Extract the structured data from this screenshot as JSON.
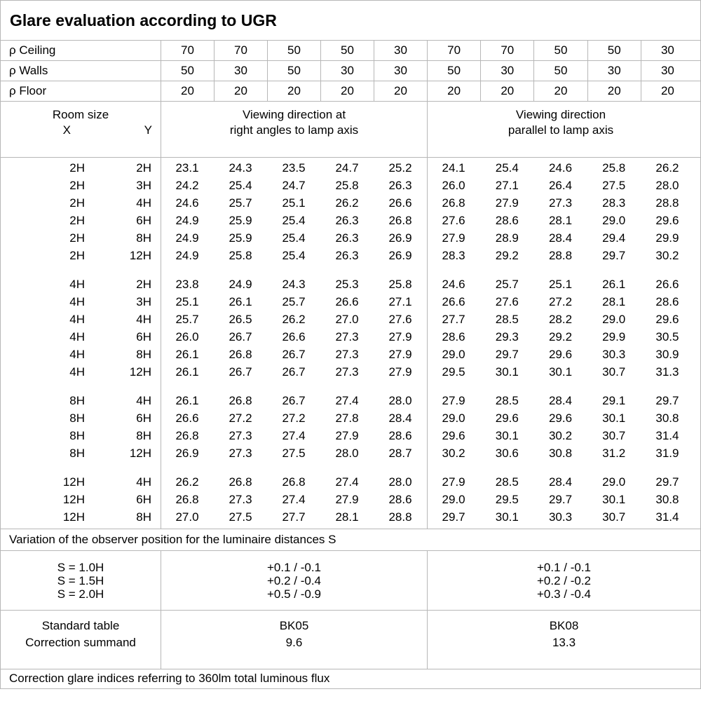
{
  "title": "Glare evaluation according to UGR",
  "reflectance_rows": [
    {
      "label": "ρ Ceiling",
      "v": [
        "70",
        "70",
        "50",
        "50",
        "30",
        "70",
        "70",
        "50",
        "50",
        "30"
      ]
    },
    {
      "label": "ρ Walls",
      "v": [
        "50",
        "30",
        "50",
        "30",
        "30",
        "50",
        "30",
        "50",
        "30",
        "30"
      ]
    },
    {
      "label": "ρ Floor",
      "v": [
        "20",
        "20",
        "20",
        "20",
        "20",
        "20",
        "20",
        "20",
        "20",
        "20"
      ]
    }
  ],
  "header": {
    "room_size": "Room size",
    "x_label": "X",
    "y_label": "Y",
    "left_line1": "Viewing direction at",
    "left_line2": "right angles to lamp axis",
    "right_line1": "Viewing direction",
    "right_line2": "parallel to lamp axis"
  },
  "ugr": {
    "group_2h": [
      {
        "x": "2H",
        "y": "2H",
        "v": [
          "23.1",
          "24.3",
          "23.5",
          "24.7",
          "25.2",
          "24.1",
          "25.4",
          "24.6",
          "25.8",
          "26.2"
        ]
      },
      {
        "x": "2H",
        "y": "3H",
        "v": [
          "24.2",
          "25.4",
          "24.7",
          "25.8",
          "26.3",
          "26.0",
          "27.1",
          "26.4",
          "27.5",
          "28.0"
        ]
      },
      {
        "x": "2H",
        "y": "4H",
        "v": [
          "24.6",
          "25.7",
          "25.1",
          "26.2",
          "26.6",
          "26.8",
          "27.9",
          "27.3",
          "28.3",
          "28.8"
        ]
      },
      {
        "x": "2H",
        "y": "6H",
        "v": [
          "24.9",
          "25.9",
          "25.4",
          "26.3",
          "26.8",
          "27.6",
          "28.6",
          "28.1",
          "29.0",
          "29.6"
        ]
      },
      {
        "x": "2H",
        "y": "8H",
        "v": [
          "24.9",
          "25.9",
          "25.4",
          "26.3",
          "26.9",
          "27.9",
          "28.9",
          "28.4",
          "29.4",
          "29.9"
        ]
      },
      {
        "x": "2H",
        "y": "12H",
        "v": [
          "24.9",
          "25.8",
          "25.4",
          "26.3",
          "26.9",
          "28.3",
          "29.2",
          "28.8",
          "29.7",
          "30.2"
        ]
      }
    ],
    "group_4h": [
      {
        "x": "4H",
        "y": "2H",
        "v": [
          "23.8",
          "24.9",
          "24.3",
          "25.3",
          "25.8",
          "24.6",
          "25.7",
          "25.1",
          "26.1",
          "26.6"
        ]
      },
      {
        "x": "4H",
        "y": "3H",
        "v": [
          "25.1",
          "26.1",
          "25.7",
          "26.6",
          "27.1",
          "26.6",
          "27.6",
          "27.2",
          "28.1",
          "28.6"
        ]
      },
      {
        "x": "4H",
        "y": "4H",
        "v": [
          "25.7",
          "26.5",
          "26.2",
          "27.0",
          "27.6",
          "27.7",
          "28.5",
          "28.2",
          "29.0",
          "29.6"
        ]
      },
      {
        "x": "4H",
        "y": "6H",
        "v": [
          "26.0",
          "26.7",
          "26.6",
          "27.3",
          "27.9",
          "28.6",
          "29.3",
          "29.2",
          "29.9",
          "30.5"
        ]
      },
      {
        "x": "4H",
        "y": "8H",
        "v": [
          "26.1",
          "26.8",
          "26.7",
          "27.3",
          "27.9",
          "29.0",
          "29.7",
          "29.6",
          "30.3",
          "30.9"
        ]
      },
      {
        "x": "4H",
        "y": "12H",
        "v": [
          "26.1",
          "26.7",
          "26.7",
          "27.3",
          "27.9",
          "29.5",
          "30.1",
          "30.1",
          "30.7",
          "31.3"
        ]
      }
    ],
    "group_8h": [
      {
        "x": "8H",
        "y": "4H",
        "v": [
          "26.1",
          "26.8",
          "26.7",
          "27.4",
          "28.0",
          "27.9",
          "28.5",
          "28.4",
          "29.1",
          "29.7"
        ]
      },
      {
        "x": "8H",
        "y": "6H",
        "v": [
          "26.6",
          "27.2",
          "27.2",
          "27.8",
          "28.4",
          "29.0",
          "29.6",
          "29.6",
          "30.1",
          "30.8"
        ]
      },
      {
        "x": "8H",
        "y": "8H",
        "v": [
          "26.8",
          "27.3",
          "27.4",
          "27.9",
          "28.6",
          "29.6",
          "30.1",
          "30.2",
          "30.7",
          "31.4"
        ]
      },
      {
        "x": "8H",
        "y": "12H",
        "v": [
          "26.9",
          "27.3",
          "27.5",
          "28.0",
          "28.7",
          "30.2",
          "30.6",
          "30.8",
          "31.2",
          "31.9"
        ]
      }
    ],
    "group_12h": [
      {
        "x": "12H",
        "y": "4H",
        "v": [
          "26.2",
          "26.8",
          "26.8",
          "27.4",
          "28.0",
          "27.9",
          "28.5",
          "28.4",
          "29.0",
          "29.7"
        ]
      },
      {
        "x": "12H",
        "y": "6H",
        "v": [
          "26.8",
          "27.3",
          "27.4",
          "27.9",
          "28.6",
          "29.0",
          "29.5",
          "29.7",
          "30.1",
          "30.8"
        ]
      },
      {
        "x": "12H",
        "y": "8H",
        "v": [
          "27.0",
          "27.5",
          "27.7",
          "28.1",
          "28.8",
          "29.7",
          "30.1",
          "30.3",
          "30.7",
          "31.4"
        ]
      }
    ]
  },
  "variation_note": "Variation of the observer position for the luminaire distances S",
  "observer_variation": {
    "rows": [
      {
        "label": "S = 1.0H",
        "right_angles": "+0.1 / -0.1",
        "parallel": "+0.1 / -0.1"
      },
      {
        "label": "S = 1.5H",
        "right_angles": "+0.2 / -0.4",
        "parallel": "+0.2 / -0.2"
      },
      {
        "label": "S = 2.0H",
        "right_angles": "+0.5 / -0.9",
        "parallel": "+0.3 / -0.4"
      }
    ]
  },
  "standard": {
    "table_label": "Standard table",
    "summand_label": "Correction summand",
    "right_angles_table": "BK05",
    "right_angles_summand": "9.6",
    "parallel_table": "BK08",
    "parallel_summand": "13.3"
  },
  "footer_note": "Correction glare indices referring to 360lm total luminous flux",
  "colors": {
    "grid_line": "#b7b7b7",
    "text": "#000000",
    "background": "#ffffff"
  }
}
